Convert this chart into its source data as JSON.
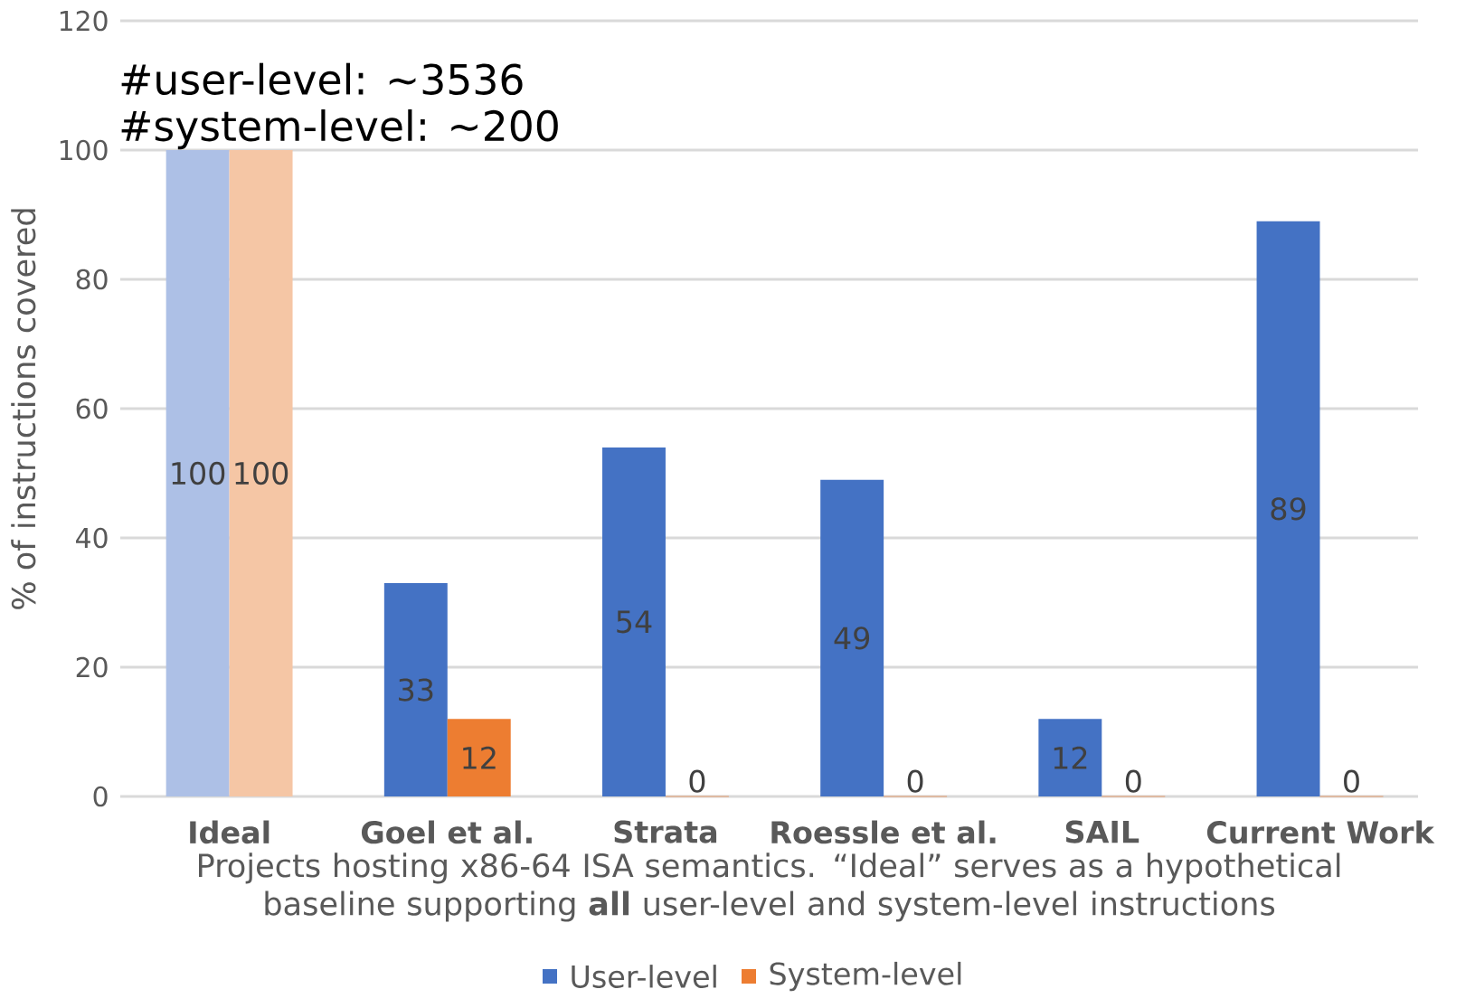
{
  "chart_data": {
    "type": "bar",
    "categories": [
      "Ideal",
      "Goel et al.",
      "Strata",
      "Roessle et al.",
      "SAIL",
      "Current Work"
    ],
    "series": [
      {
        "name": "User-level",
        "color": "#4472c4",
        "colors": [
          "#adc0e6",
          "#4472c4",
          "#4472c4",
          "#4472c4",
          "#4472c4",
          "#4472c4"
        ],
        "values": [
          100,
          33,
          54,
          49,
          12,
          89
        ]
      },
      {
        "name": "System-level",
        "color": "#ed7d31",
        "colors": [
          "#f5c6a5",
          "#ed7d31",
          "#ed7d31",
          "#ed7d31",
          "#ed7d31",
          "#ed7d31"
        ],
        "values": [
          100,
          12,
          0,
          0,
          0,
          0
        ]
      }
    ],
    "xlabel": "Projects hosting x86-64 ISA semantics. “Ideal” serves as a hypothetical baseline supporting **all** user-level and system-level instructions",
    "ylabel": "% of instructions covered",
    "annotations": [
      "#user-level: ~3536",
      "#system-level: ~200"
    ],
    "ylim": [
      0,
      120
    ],
    "yticks": [
      0,
      20,
      40,
      60,
      80,
      100,
      120
    ],
    "grid": "y",
    "legend": "bottom",
    "data_labels": true
  }
}
